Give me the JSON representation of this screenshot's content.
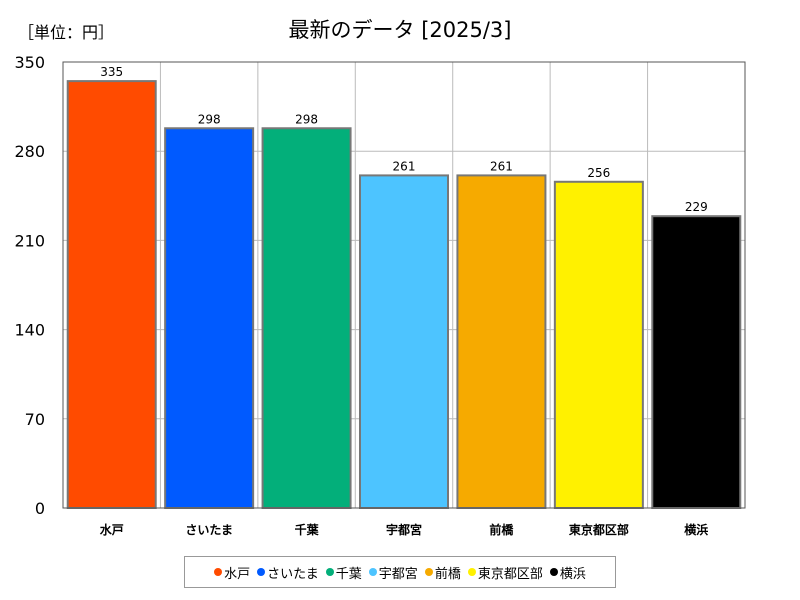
{
  "header": {
    "unit_label": "［単位：円］",
    "title": "最新のデータ [2025/3]"
  },
  "chart_data": {
    "type": "bar",
    "categories": [
      "水戸",
      "さいたま",
      "千葉",
      "宇都宮",
      "前橋",
      "東京都区部",
      "横浜"
    ],
    "values": [
      335,
      298,
      298,
      261,
      261,
      256,
      229
    ],
    "colors": [
      "#ff4b00",
      "#005aff",
      "#03af7a",
      "#4dc4ff",
      "#f6aa00",
      "#fff100",
      "#000000"
    ],
    "ylim": [
      0,
      350
    ],
    "yticks": [
      0,
      70,
      140,
      210,
      280,
      350
    ],
    "grid": true,
    "legend": "bottom"
  }
}
